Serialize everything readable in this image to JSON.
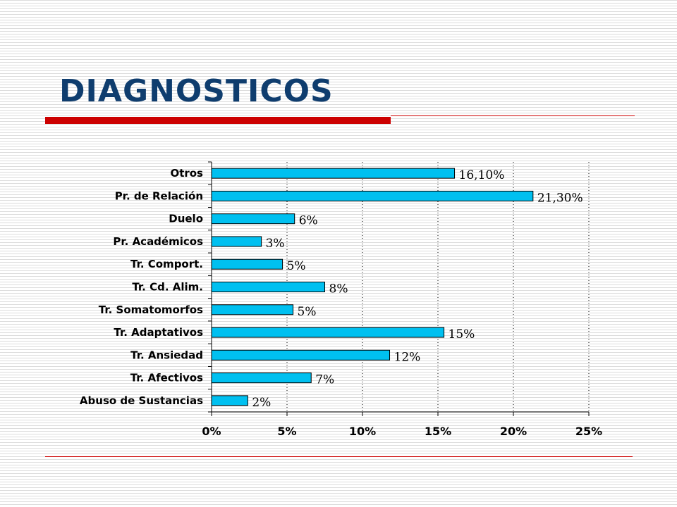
{
  "title": "DIAGNOSTICOS",
  "colors": {
    "title": "#0f3d6e",
    "accent": "#cc0000",
    "bar": "#00c0f0"
  },
  "chart_data": {
    "type": "bar",
    "orientation": "horizontal",
    "categories": [
      "Otros",
      "Pr. de Relación",
      "Duelo",
      "Pr. Académicos",
      "Tr. Comport.",
      "Tr. Cd. Alim.",
      "Tr. Somatomorfos",
      "Tr. Adaptativos",
      "Tr. Ansiedad",
      "Tr. Afectivos",
      "Abuso de Sustancias"
    ],
    "values": [
      16.1,
      21.3,
      5.5,
      3.3,
      4.7,
      7.5,
      5.4,
      15.4,
      11.8,
      6.6,
      2.4
    ],
    "value_labels": [
      "16,10%",
      "21,30%",
      "6%",
      "3%",
      "5%",
      "8%",
      "5%",
      "15%",
      "12%",
      "7%",
      "2%"
    ],
    "x_ticks": [
      "0%",
      "5%",
      "10%",
      "15%",
      "20%",
      "25%"
    ],
    "xlim": [
      0,
      25
    ],
    "grid": "vertical dotted",
    "legend": "none"
  }
}
